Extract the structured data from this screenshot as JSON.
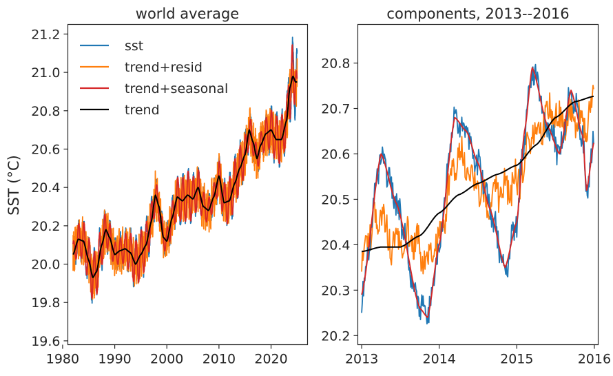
{
  "chart_data": [
    {
      "type": "line",
      "title": "world average",
      "ylabel": "SST (°C)",
      "xlabel": "",
      "xlim": [
        1981,
        2027
      ],
      "ylim": [
        19.58,
        21.25
      ],
      "xticks": [
        1980,
        1990,
        2000,
        2010,
        2020
      ],
      "yticks": [
        19.6,
        19.8,
        20.0,
        20.2,
        20.4,
        20.6,
        20.8,
        21.0,
        21.2
      ],
      "ytick_labels": [
        "19.6",
        "19.8",
        "20.0",
        "20.2",
        "20.4",
        "20.6",
        "20.8",
        "21.0",
        "21.2"
      ],
      "legend_position": "top-left",
      "series": [
        {
          "name": "sst",
          "color": "#1f77b4"
        },
        {
          "name": "trend+resid",
          "color": "#ff7f0e"
        },
        {
          "name": "trend+seasonal",
          "color": "#d62728"
        },
        {
          "name": "trend",
          "color": "#000000"
        }
      ],
      "trend_knots": {
        "x": [
          1982,
          1983,
          1984,
          1985,
          1985.8,
          1986.5,
          1987.5,
          1988.3,
          1989,
          1990,
          1991,
          1992,
          1993,
          1994,
          1995,
          1996,
          1997,
          1997.8,
          1998.5,
          1999.3,
          2000,
          2001,
          2002,
          2003,
          2004,
          2005,
          2006,
          2007,
          2008,
          2009,
          2010,
          2011,
          2012,
          2013,
          2014,
          2015,
          2015.8,
          2016.5,
          2017.3,
          2018,
          2019,
          2020,
          2021,
          2022,
          2023,
          2023.6,
          2024.2,
          2024.7,
          2025
        ],
        "y": [
          20.05,
          20.13,
          20.12,
          20.02,
          19.93,
          19.96,
          20.1,
          20.18,
          20.14,
          20.05,
          20.07,
          20.08,
          20.06,
          20.0,
          20.05,
          20.1,
          20.22,
          20.36,
          20.3,
          20.14,
          20.12,
          20.24,
          20.35,
          20.33,
          20.36,
          20.34,
          20.4,
          20.3,
          20.28,
          20.35,
          20.46,
          20.32,
          20.33,
          20.42,
          20.5,
          20.57,
          20.7,
          20.64,
          20.55,
          20.62,
          20.68,
          20.7,
          20.65,
          20.65,
          20.75,
          20.92,
          20.98,
          20.95,
          20.95
        ]
      },
      "seasonal_amplitude": 0.1,
      "noise_amplitude": 0.04
    },
    {
      "type": "line",
      "title": "components, 2013--2016",
      "xlabel": "",
      "ylabel": "",
      "xlim": [
        2012.95,
        2016.05
      ],
      "ylim": [
        20.18,
        20.885
      ],
      "xticks": [
        2013,
        2014,
        2015,
        2016
      ],
      "yticks": [
        20.2,
        20.3,
        20.4,
        20.5,
        20.6,
        20.7,
        20.8
      ],
      "ytick_labels": [
        "20.2",
        "20.3",
        "20.4",
        "20.5",
        "20.6",
        "20.7",
        "20.8"
      ],
      "series": [
        {
          "name": "sst",
          "color": "#1f77b4"
        },
        {
          "name": "trend+resid",
          "color": "#ff7f0e"
        },
        {
          "name": "trend+seasonal",
          "color": "#d62728"
        },
        {
          "name": "trend",
          "color": "#000000"
        }
      ],
      "trend_knots": {
        "x": [
          2013,
          2013.25,
          2013.5,
          2013.75,
          2014,
          2014.25,
          2014.5,
          2014.75,
          2015,
          2015.25,
          2015.5,
          2015.75,
          2016
        ],
        "y": [
          20.385,
          20.395,
          20.395,
          20.42,
          20.47,
          20.51,
          20.535,
          20.555,
          20.575,
          20.62,
          20.68,
          20.715,
          20.727
        ]
      },
      "seasonal_knots": {
        "x": [
          2013,
          2013.25,
          2013.45,
          2013.75,
          2013.85,
          2014.0,
          2014.2,
          2014.35,
          2014.5,
          2014.65,
          2014.85,
          2015.0,
          2015.1,
          2015.2,
          2015.4,
          2015.55,
          2015.7,
          2015.85,
          2015.9,
          2016.0
        ],
        "y": [
          20.29,
          20.6,
          20.49,
          20.26,
          20.24,
          20.4,
          20.68,
          20.65,
          20.58,
          20.48,
          20.35,
          20.45,
          20.65,
          20.79,
          20.66,
          20.6,
          20.74,
          20.64,
          20.52,
          20.63
        ]
      }
    }
  ]
}
